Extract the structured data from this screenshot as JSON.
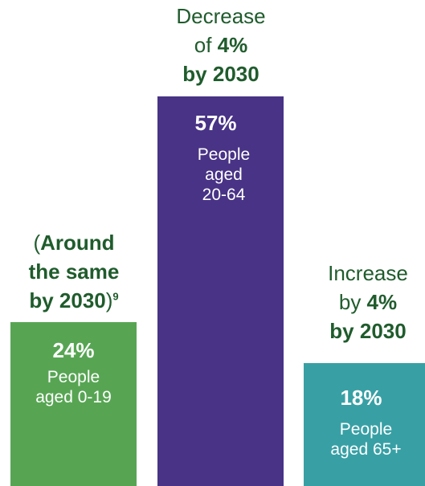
{
  "chart_data": {
    "type": "bar",
    "title": "",
    "xlabel": "",
    "ylabel": "",
    "ylim": [
      0,
      57
    ],
    "bars": [
      {
        "group": "People aged 0-19",
        "group_lines": [
          "People",
          "aged 0-19"
        ],
        "value": 24,
        "value_label": "24%",
        "color": "#57a553",
        "annotation": {
          "line1_plain": "(",
          "line1_bold": "Around",
          "line2_bold": "the same",
          "line3_bold": "by 2030",
          "line3_plain": ")",
          "footnote": "9"
        }
      },
      {
        "group": "People aged 20-64",
        "group_lines": [
          "People",
          "aged",
          "20-64"
        ],
        "value": 57,
        "value_label": "57%",
        "color": "#483386",
        "annotation": {
          "line1_plain": "Decrease",
          "line2_plain": "of ",
          "line2_bold": "4%",
          "line3_bold": "by 2030"
        }
      },
      {
        "group": "People aged 65+",
        "group_lines": [
          "People",
          "aged 65+"
        ],
        "value": 18,
        "value_label": "18%",
        "color": "#38a0a5",
        "annotation": {
          "line1_plain": "Increase",
          "line2_plain": "by ",
          "line2_bold": "4%",
          "line3_bold": "by 2030"
        }
      }
    ]
  }
}
